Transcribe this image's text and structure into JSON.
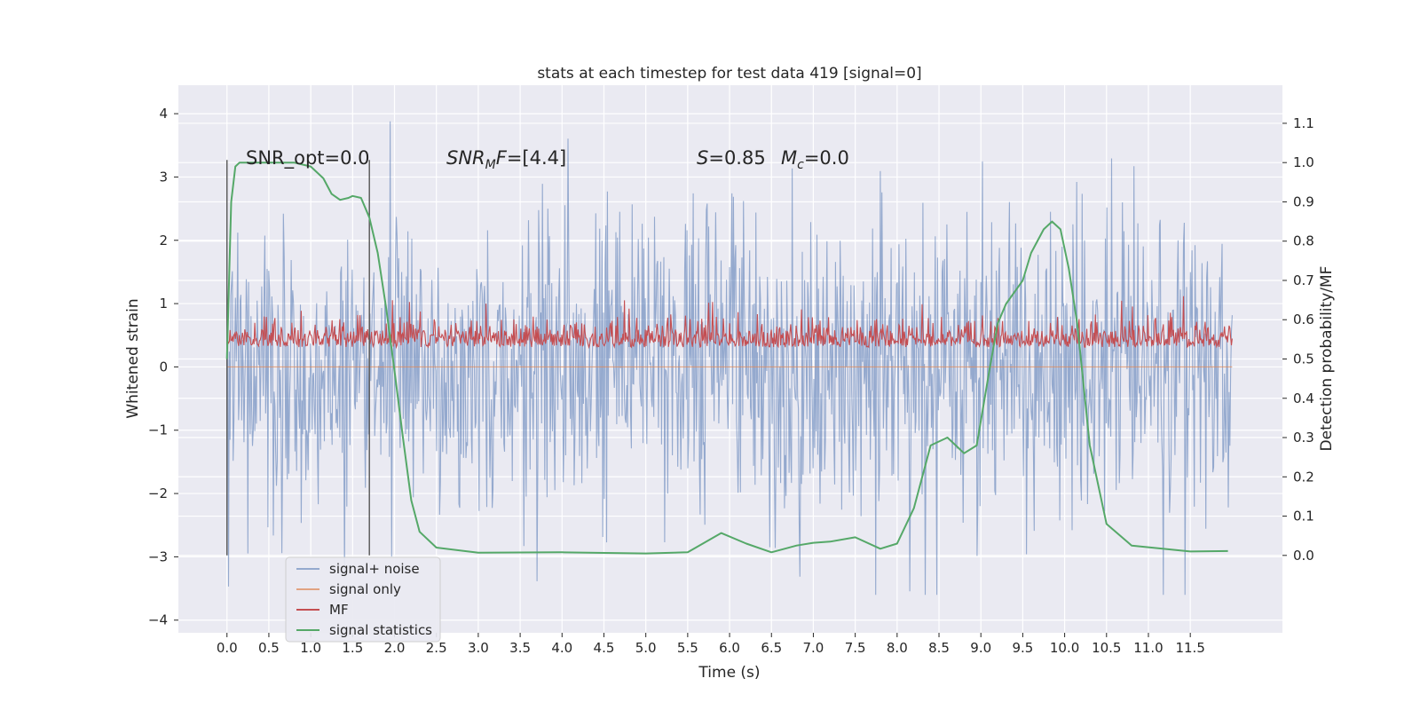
{
  "chart_data": {
    "type": "line",
    "title": "stats at each timestep for test data 419 [signal=0]",
    "xlabel": "Time (s)",
    "ylabel_left": "Whitened strain",
    "ylabel_right": "Detection probability/MF",
    "xlim": [
      -0.58,
      12.6
    ],
    "ylim_left": [
      -4.2,
      4.45
    ],
    "ylim_right": [
      -0.197,
      1.197
    ],
    "x_ticks": [
      0.0,
      0.5,
      1.0,
      1.5,
      2.0,
      2.5,
      3.0,
      3.5,
      4.0,
      4.5,
      5.0,
      5.5,
      6.0,
      6.5,
      7.0,
      7.5,
      8.0,
      8.5,
      9.0,
      9.5,
      10.0,
      10.5,
      11.0,
      11.5
    ],
    "x_tick_labels": [
      "0.0",
      "0.5",
      "1.0",
      "1.5",
      "2.0",
      "2.5",
      "3.0",
      "3.5",
      "4.0",
      "4.5",
      "5.0",
      "5.5",
      "6.0",
      "6.5",
      "7.0",
      "7.5",
      "8.0",
      "8.5",
      "9.0",
      "9.5",
      "10.0",
      "10.5",
      "11.0",
      "11.5"
    ],
    "y_ticks_left": [
      4,
      3,
      2,
      1,
      0,
      -1,
      -2,
      -3,
      -4
    ],
    "y_tick_labels_left": [
      "4",
      "3",
      "2",
      "1",
      "0",
      "−1",
      "−2",
      "−3",
      "−4"
    ],
    "y_ticks_right": [
      1.1,
      1.0,
      0.9,
      0.8,
      0.7,
      0.6,
      0.5,
      0.4,
      0.3,
      0.2,
      0.1,
      0.0
    ],
    "y_tick_labels_right": [
      "1.1",
      "1.0",
      "0.9",
      "0.8",
      "0.7",
      "0.6",
      "0.5",
      "0.4",
      "0.3",
      "0.2",
      "0.1",
      "0.0"
    ],
    "annotations": {
      "snr_opt": "SNR_opt=0.0",
      "snr_mf_italic": "SNR",
      "snr_mf_sub": "M",
      "snr_mf_tail": "F",
      "snr_mf_value": "=[4.4]",
      "s_italic": "S",
      "s_value": "=0.85",
      "mc_italic": "M",
      "mc_sub": "c",
      "mc_value": "=0.0"
    },
    "grid": true,
    "legend_position": "lower-left",
    "series": [
      {
        "name": "signal+ noise",
        "color": "#4c72b0",
        "style": "dense noise, approx ±1.5 typical band with spikes up to ±4",
        "x_range": [
          0.0,
          12.0
        ],
        "band": [
          -1.6,
          1.6
        ],
        "spike_max": [
          -3.6,
          4.1
        ]
      },
      {
        "name": "signal only",
        "color": "#dd8452",
        "x_range": [
          0.0,
          12.0
        ],
        "values_flat": 0.0
      },
      {
        "name": "MF",
        "color": "#c44e52",
        "style": "noise on right axis around 0.5",
        "x_range": [
          0.0,
          12.0
        ],
        "band_right": [
          0.5,
          0.58
        ],
        "spike_max_right": 0.66
      },
      {
        "name": "signal statistics",
        "color": "#55a868",
        "axis": "right",
        "x": [
          0.0,
          0.05,
          0.1,
          0.15,
          0.25,
          0.5,
          0.8,
          1.0,
          1.15,
          1.25,
          1.35,
          1.45,
          1.5,
          1.6,
          1.7,
          1.8,
          1.9,
          2.0,
          2.1,
          2.2,
          2.3,
          2.5,
          3.0,
          4.0,
          5.0,
          5.5,
          5.9,
          6.2,
          6.5,
          6.8,
          7.0,
          7.2,
          7.5,
          7.8,
          8.0,
          8.2,
          8.4,
          8.6,
          8.8,
          8.95,
          9.1,
          9.2,
          9.3,
          9.5,
          9.6,
          9.75,
          9.85,
          9.95,
          10.05,
          10.15,
          10.3,
          10.5,
          10.8,
          11.5,
          11.95
        ],
        "y": [
          0.5,
          0.9,
          0.99,
          1.0,
          1.0,
          1.0,
          1.0,
          0.99,
          0.96,
          0.92,
          0.905,
          0.91,
          0.915,
          0.91,
          0.86,
          0.77,
          0.63,
          0.47,
          0.3,
          0.14,
          0.06,
          0.02,
          0.007,
          0.008,
          0.005,
          0.008,
          0.057,
          0.03,
          0.008,
          0.025,
          0.032,
          0.035,
          0.046,
          0.017,
          0.03,
          0.12,
          0.28,
          0.3,
          0.26,
          0.28,
          0.47,
          0.59,
          0.64,
          0.7,
          0.77,
          0.83,
          0.85,
          0.83,
          0.73,
          0.59,
          0.28,
          0.08,
          0.025,
          0.01,
          0.011
        ]
      }
    ],
    "vertical_markers": [
      0.0,
      1.7
    ],
    "legend": [
      "signal+ noise",
      "signal only",
      "MF",
      "signal statistics"
    ]
  }
}
